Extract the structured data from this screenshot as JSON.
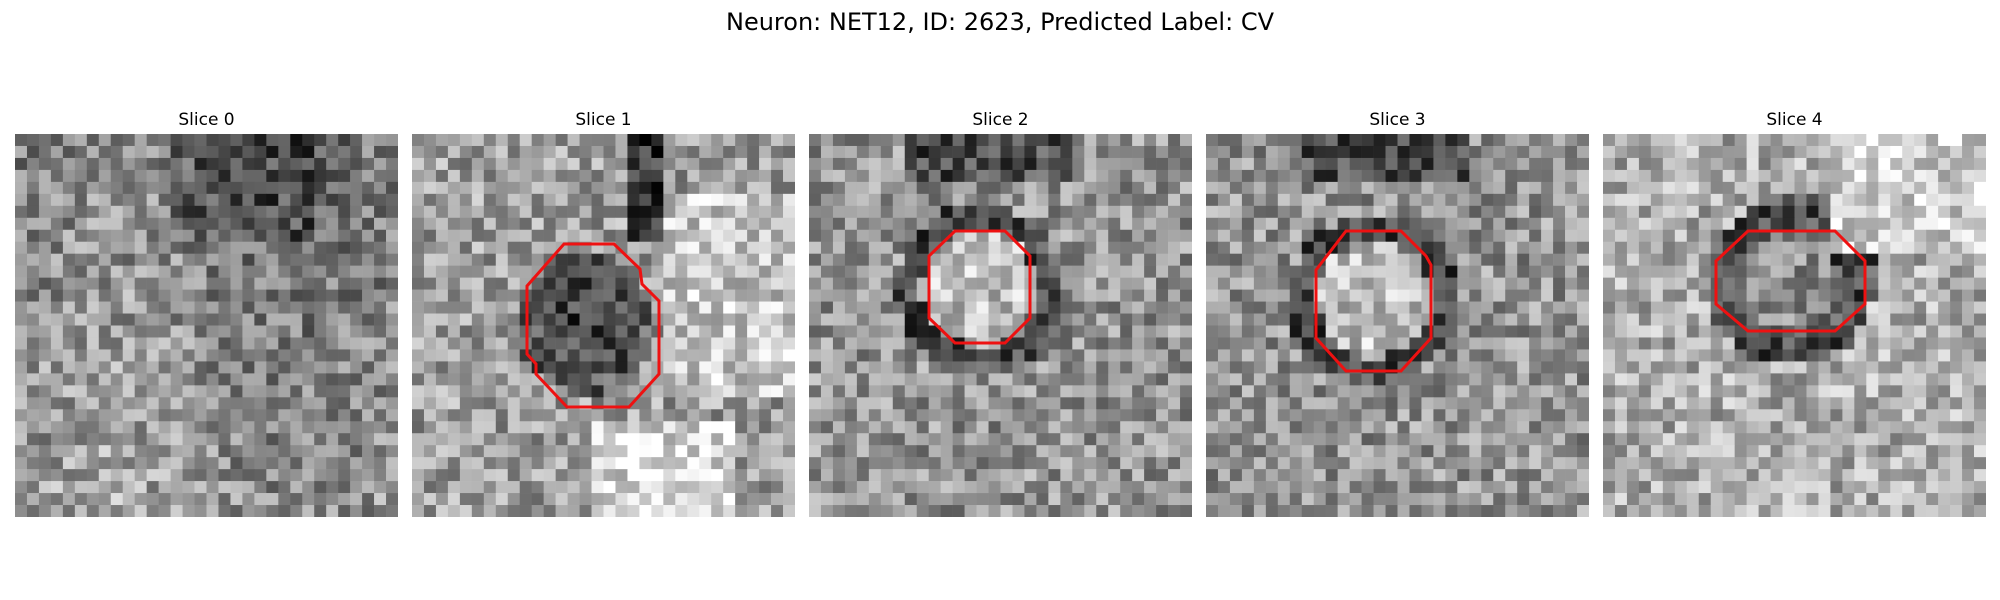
{
  "figure": {
    "title": "Neuron: NET12, ID: 2623, Predicted Label: CV"
  },
  "slices": [
    {
      "label": "Slice 0",
      "seed": 11,
      "pattern": "noise"
    },
    {
      "label": "Slice 1",
      "seed": 23,
      "pattern": "dark-blob"
    },
    {
      "label": "Slice 2",
      "seed": 37,
      "pattern": "ring-bright-center"
    },
    {
      "label": "Slice 3",
      "seed": 53,
      "pattern": "ring-bright-center"
    },
    {
      "label": "Slice 4",
      "seed": 71,
      "pattern": "ring-dark"
    }
  ],
  "colors": {
    "contour": "#ee1111",
    "background": "#ffffff"
  }
}
